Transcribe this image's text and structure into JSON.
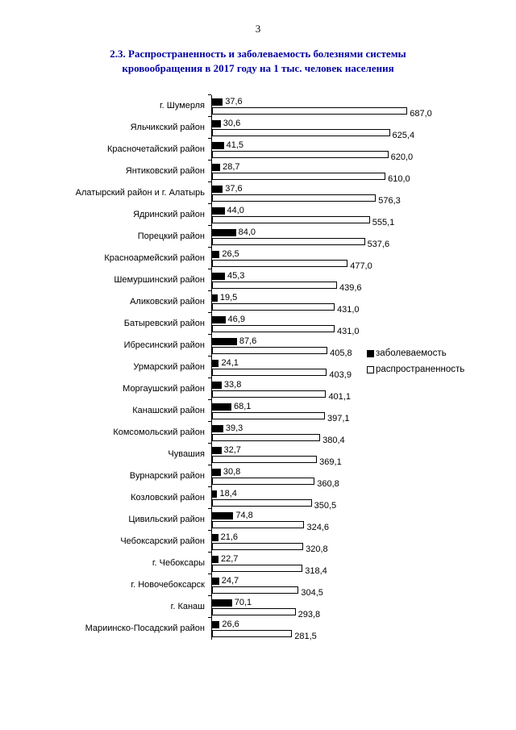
{
  "page": {
    "number": "3"
  },
  "title": {
    "line1": "2.3. Распространенность и заболеваемость болезнями системы",
    "line2": "кровообращения в 2017 году на 1 тыс. человек населения"
  },
  "chart_data": {
    "type": "bar",
    "orientation": "horizontal",
    "title": "2.3. Распространенность и заболеваемость болезнями системы кровообращения в 2017 году на 1 тыс. человек населения",
    "categories": [
      "г. Шумерля",
      "Яльчикский район",
      "Красночетайский район",
      "Янтиковский район",
      "Алатырский район  и г. Алатырь",
      "Ядринский район",
      "Порецкий район",
      "Красноармейский район",
      "Шемуршинский район",
      "Аликовский район",
      "Батыревский район",
      "Ибресинский район",
      "Урмарский район",
      "Моргаушский район",
      "Канашский район",
      "Комсомольский район",
      "Чувашия",
      "Вурнарский район",
      "Козловский район",
      "Цивильский район",
      "Чебоксарский район",
      "г. Чебоксары",
      "г. Новочебоксарск",
      "г. Канаш",
      "Мариинско-Посадский район"
    ],
    "series": [
      {
        "name": "заболеваемость",
        "color": "#000000",
        "values": [
          37.6,
          30.6,
          41.5,
          28.7,
          37.6,
          44.0,
          84.0,
          26.5,
          45.3,
          19.5,
          46.9,
          87.6,
          24.1,
          33.8,
          68.1,
          39.3,
          32.7,
          30.8,
          18.4,
          74.8,
          21.6,
          22.7,
          24.7,
          70.1,
          26.6
        ]
      },
      {
        "name": "распространенность",
        "color": "#ffffff",
        "values": [
          687.0,
          625.4,
          620.0,
          610.0,
          576.3,
          555.1,
          537.6,
          477.0,
          439.6,
          431.0,
          431.0,
          405.8,
          403.9,
          401.1,
          397.1,
          380.4,
          369.1,
          360.8,
          350.5,
          324.6,
          320.8,
          318.4,
          304.5,
          293.8,
          281.5
        ]
      }
    ],
    "xlim": [
      0,
      760
    ],
    "value_label_decimal_separator": ",",
    "legend_position": "right",
    "grid": false
  }
}
